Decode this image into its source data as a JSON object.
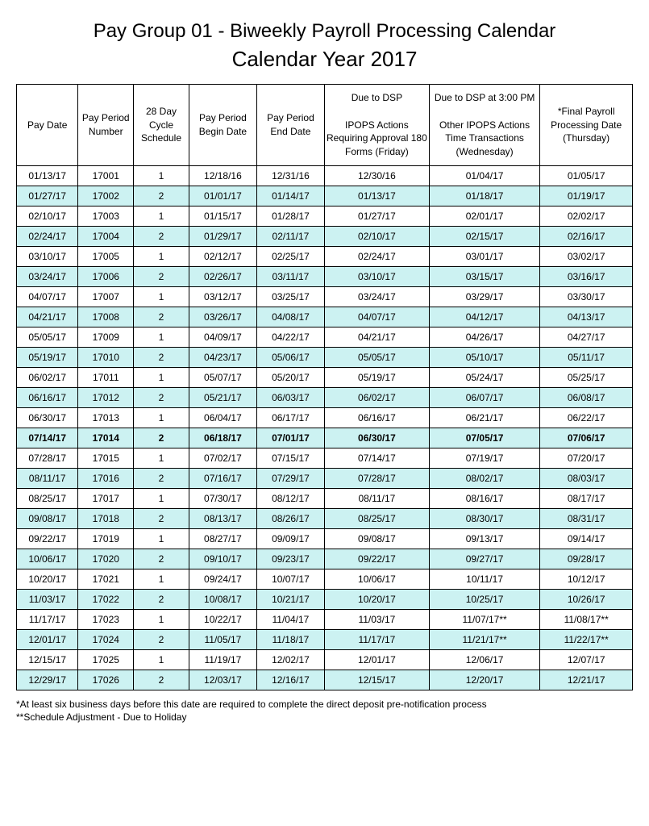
{
  "title": "Pay Group 01 - Biweekly Payroll Processing Calendar",
  "subtitle": "Calendar Year 2017",
  "table": {
    "alt_row_color": "#ccf2f2",
    "border_color": "#000000",
    "font_size": 12,
    "col_widths": [
      "10%",
      "9%",
      "9%",
      "11%",
      "11%",
      "17%",
      "18%",
      "15%"
    ],
    "columns": [
      "Pay Date",
      "Pay Period Number",
      "28 Day Cycle Schedule",
      "Pay Period Begin Date",
      "Pay Period End Date",
      "Due to DSP\n\nIPOPS Actions Requiring Approval 180 Forms (Friday)",
      "Due to DSP at 3:00 PM\n\nOther IPOPS Actions Time Transactions (Wednesday)",
      "*Final Payroll Processing Date (Thursday)"
    ],
    "rows": [
      {
        "alt": false,
        "bold": false,
        "cells": [
          "01/13/17",
          "17001",
          "1",
          "12/18/16",
          "12/31/16",
          "12/30/16",
          "01/04/17",
          "01/05/17"
        ]
      },
      {
        "alt": true,
        "bold": false,
        "cells": [
          "01/27/17",
          "17002",
          "2",
          "01/01/17",
          "01/14/17",
          "01/13/17",
          "01/18/17",
          "01/19/17"
        ]
      },
      {
        "alt": false,
        "bold": false,
        "cells": [
          "02/10/17",
          "17003",
          "1",
          "01/15/17",
          "01/28/17",
          "01/27/17",
          "02/01/17",
          "02/02/17"
        ]
      },
      {
        "alt": true,
        "bold": false,
        "cells": [
          "02/24/17",
          "17004",
          "2",
          "01/29/17",
          "02/11/17",
          "02/10/17",
          "02/15/17",
          "02/16/17"
        ]
      },
      {
        "alt": false,
        "bold": false,
        "cells": [
          "03/10/17",
          "17005",
          "1",
          "02/12/17",
          "02/25/17",
          "02/24/17",
          "03/01/17",
          "03/02/17"
        ]
      },
      {
        "alt": true,
        "bold": false,
        "cells": [
          "03/24/17",
          "17006",
          "2",
          "02/26/17",
          "03/11/17",
          "03/10/17",
          "03/15/17",
          "03/16/17"
        ]
      },
      {
        "alt": false,
        "bold": false,
        "cells": [
          "04/07/17",
          "17007",
          "1",
          "03/12/17",
          "03/25/17",
          "03/24/17",
          "03/29/17",
          "03/30/17"
        ]
      },
      {
        "alt": true,
        "bold": false,
        "cells": [
          "04/21/17",
          "17008",
          "2",
          "03/26/17",
          "04/08/17",
          "04/07/17",
          "04/12/17",
          "04/13/17"
        ]
      },
      {
        "alt": false,
        "bold": false,
        "cells": [
          "05/05/17",
          "17009",
          "1",
          "04/09/17",
          "04/22/17",
          "04/21/17",
          "04/26/17",
          "04/27/17"
        ]
      },
      {
        "alt": true,
        "bold": false,
        "cells": [
          "05/19/17",
          "17010",
          "2",
          "04/23/17",
          "05/06/17",
          "05/05/17",
          "05/10/17",
          "05/11/17"
        ]
      },
      {
        "alt": false,
        "bold": false,
        "cells": [
          "06/02/17",
          "17011",
          "1",
          "05/07/17",
          "05/20/17",
          "05/19/17",
          "05/24/17",
          "05/25/17"
        ]
      },
      {
        "alt": true,
        "bold": false,
        "cells": [
          "06/16/17",
          "17012",
          "2",
          "05/21/17",
          "06/03/17",
          "06/02/17",
          "06/07/17",
          "06/08/17"
        ]
      },
      {
        "alt": false,
        "bold": false,
        "cells": [
          "06/30/17",
          "17013",
          "1",
          "06/04/17",
          "06/17/17",
          "06/16/17",
          "06/21/17",
          "06/22/17"
        ]
      },
      {
        "alt": true,
        "bold": true,
        "cells": [
          "07/14/17",
          "17014",
          "2",
          "06/18/17",
          "07/01/17",
          "06/30/17",
          "07/05/17",
          "07/06/17"
        ]
      },
      {
        "alt": false,
        "bold": false,
        "cells": [
          "07/28/17",
          "17015",
          "1",
          "07/02/17",
          "07/15/17",
          "07/14/17",
          "07/19/17",
          "07/20/17"
        ]
      },
      {
        "alt": true,
        "bold": false,
        "cells": [
          "08/11/17",
          "17016",
          "2",
          "07/16/17",
          "07/29/17",
          "07/28/17",
          "08/02/17",
          "08/03/17"
        ]
      },
      {
        "alt": false,
        "bold": false,
        "cells": [
          "08/25/17",
          "17017",
          "1",
          "07/30/17",
          "08/12/17",
          "08/11/17",
          "08/16/17",
          "08/17/17"
        ]
      },
      {
        "alt": true,
        "bold": false,
        "cells": [
          "09/08/17",
          "17018",
          "2",
          "08/13/17",
          "08/26/17",
          "08/25/17",
          "08/30/17",
          "08/31/17"
        ]
      },
      {
        "alt": false,
        "bold": false,
        "cells": [
          "09/22/17",
          "17019",
          "1",
          "08/27/17",
          "09/09/17",
          "09/08/17",
          "09/13/17",
          "09/14/17"
        ]
      },
      {
        "alt": true,
        "bold": false,
        "cells": [
          "10/06/17",
          "17020",
          "2",
          "09/10/17",
          "09/23/17",
          "09/22/17",
          "09/27/17",
          "09/28/17"
        ]
      },
      {
        "alt": false,
        "bold": false,
        "cells": [
          "10/20/17",
          "17021",
          "1",
          "09/24/17",
          "10/07/17",
          "10/06/17",
          "10/11/17",
          "10/12/17"
        ]
      },
      {
        "alt": true,
        "bold": false,
        "cells": [
          "11/03/17",
          "17022",
          "2",
          "10/08/17",
          "10/21/17",
          "10/20/17",
          "10/25/17",
          "10/26/17"
        ]
      },
      {
        "alt": false,
        "bold": false,
        "cells": [
          "11/17/17",
          "17023",
          "1",
          "10/22/17",
          "11/04/17",
          "11/03/17",
          "11/07/17**",
          "11/08/17**"
        ]
      },
      {
        "alt": true,
        "bold": false,
        "cells": [
          "12/01/17",
          "17024",
          "2",
          "11/05/17",
          "11/18/17",
          "11/17/17",
          "11/21/17**",
          "11/22/17**"
        ]
      },
      {
        "alt": false,
        "bold": false,
        "cells": [
          "12/15/17",
          "17025",
          "1",
          "11/19/17",
          "12/02/17",
          "12/01/17",
          "12/06/17",
          "12/07/17"
        ]
      },
      {
        "alt": true,
        "bold": false,
        "cells": [
          "12/29/17",
          "17026",
          "2",
          "12/03/17",
          "12/16/17",
          "12/15/17",
          "12/20/17",
          "12/21/17"
        ]
      }
    ]
  },
  "footnotes": [
    "*At least six business days before this date are required to complete the direct deposit pre-notification process",
    "**Schedule Adjustment - Due to Holiday"
  ]
}
